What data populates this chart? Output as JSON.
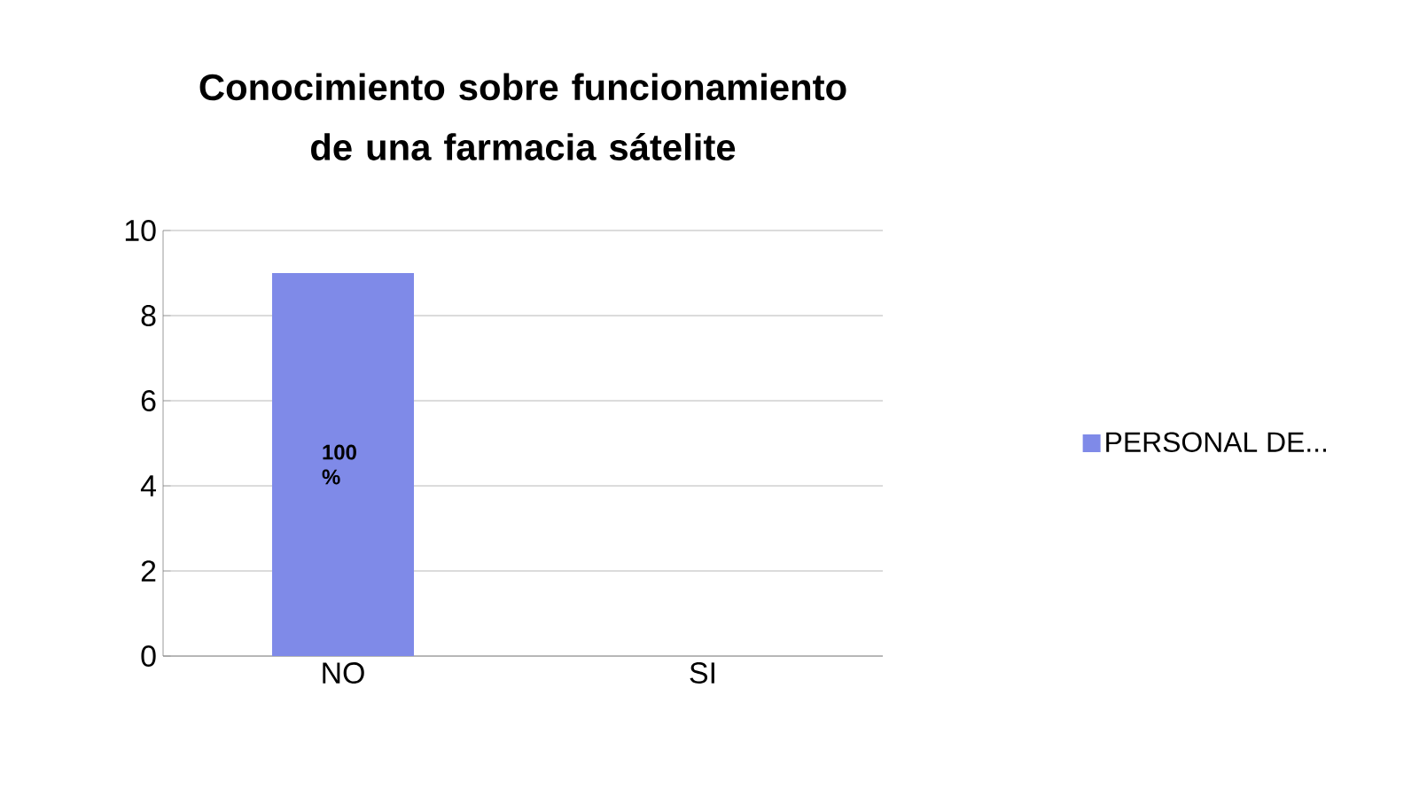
{
  "chart_data": {
    "type": "bar",
    "title": "Conocimiento sobre funcionamiento de una farmacia sátelite",
    "categories": [
      "NO",
      "SI"
    ],
    "series": [
      {
        "name": "PERSONAL DE...",
        "color": "#7f8ae8",
        "values": [
          9,
          0
        ]
      }
    ],
    "annotations": [
      "100 %"
    ],
    "ylim": [
      0,
      10
    ],
    "yticks": [
      0,
      2,
      4,
      6,
      8,
      10
    ],
    "grid": "y",
    "legend": "right"
  }
}
